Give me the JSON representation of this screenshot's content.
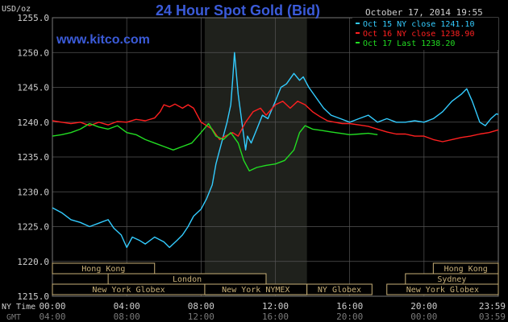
{
  "title": "24 Hour Spot Gold (Bid)",
  "website": "www.kitco.com",
  "timestamp": "October 17, 2014 19:55",
  "units": "USD/oz",
  "colors": {
    "background": "#000000",
    "grid": "#555555",
    "title": "#3b5bd9",
    "website": "#3b5bd9",
    "axis_text": "#cfcfcf",
    "gmt_text": "#7a7a7a",
    "highlight_band": "#1f211c",
    "session_box": "#c8b078",
    "session_text": "#c8b078"
  },
  "legend": [
    {
      "label": "Oct 15 NY close 1241.10",
      "color": "#33ccff"
    },
    {
      "label": "Oct 16 NY close 1238.90",
      "color": "#ff2020"
    },
    {
      "label": "Oct 17 Last 1238.20",
      "color": "#22dd22"
    }
  ],
  "axis_footer": {
    "ny_time": "NY Time",
    "gmt": "GMT"
  },
  "sessions": [
    {
      "label": "Hong Kong",
      "start": 0,
      "end": 5.5,
      "row": 0
    },
    {
      "label": "Hong Kong",
      "start": 20.5,
      "end": 24,
      "row": 0
    },
    {
      "label": "London",
      "start": 3,
      "end": 11.5,
      "row": 1
    },
    {
      "label": "Sydney",
      "start": 19,
      "end": 24,
      "row": 1
    },
    {
      "label": "New York Globex",
      "start": 0,
      "end": 8.2,
      "row": 2
    },
    {
      "label": "New York NYMEX",
      "start": 8.2,
      "end": 13.7,
      "row": 2
    },
    {
      "label": "NY Globex",
      "start": 13.7,
      "end": 17.2,
      "row": 2
    },
    {
      "label": "New York Globex",
      "start": 18,
      "end": 24,
      "row": 2
    }
  ],
  "chart_data": {
    "type": "line",
    "title": "24 Hour Spot Gold (Bid)",
    "ylabel": "USD/oz",
    "xlim": [
      0,
      24
    ],
    "ylim": [
      1215,
      1255
    ],
    "y_ticks": [
      "1255.0",
      "1250.0",
      "1245.0",
      "1240.0",
      "1235.0",
      "1230.0",
      "1225.0",
      "1220.0",
      "1215.0"
    ],
    "y_tick_values": [
      1255,
      1250,
      1245,
      1240,
      1235,
      1230,
      1225,
      1220,
      1215
    ],
    "x_ticks_ny": [
      "00:00",
      "04:00",
      "08:00",
      "12:00",
      "16:00",
      "20:00",
      "23:59"
    ],
    "x_ticks_gmt": [
      "04:00",
      "08:00",
      "12:00",
      "16:00",
      "20:00",
      "00:00",
      "03:59"
    ],
    "x_tick_values": [
      0,
      4,
      8,
      12,
      16,
      20,
      24
    ],
    "highlight_range": [
      8.2,
      13.7
    ],
    "grid": true,
    "legend_position": "top-right",
    "series": [
      {
        "name": "Oct 15 NY close 1241.10",
        "color": "#33ccff",
        "points": [
          [
            0,
            1227.7
          ],
          [
            0.5,
            1227.0
          ],
          [
            1,
            1226.0
          ],
          [
            1.5,
            1225.6
          ],
          [
            2,
            1225.0
          ],
          [
            2.5,
            1225.5
          ],
          [
            3,
            1226.0
          ],
          [
            3.3,
            1224.8
          ],
          [
            3.7,
            1223.8
          ],
          [
            4,
            1222.0
          ],
          [
            4.3,
            1223.5
          ],
          [
            4.7,
            1223.0
          ],
          [
            5,
            1222.5
          ],
          [
            5.5,
            1223.5
          ],
          [
            6,
            1222.8
          ],
          [
            6.3,
            1222.0
          ],
          [
            6.7,
            1223.0
          ],
          [
            7,
            1223.8
          ],
          [
            7.3,
            1225.0
          ],
          [
            7.6,
            1226.5
          ],
          [
            8,
            1227.5
          ],
          [
            8.3,
            1229.0
          ],
          [
            8.6,
            1231.0
          ],
          [
            8.8,
            1234.0
          ],
          [
            9.0,
            1236.0
          ],
          [
            9.2,
            1238.0
          ],
          [
            9.4,
            1240.0
          ],
          [
            9.6,
            1242.5
          ],
          [
            9.7,
            1246.0
          ],
          [
            9.8,
            1250.0
          ],
          [
            9.9,
            1247.0
          ],
          [
            10.0,
            1244.0
          ],
          [
            10.2,
            1240.0
          ],
          [
            10.4,
            1236.0
          ],
          [
            10.5,
            1238.0
          ],
          [
            10.7,
            1237.0
          ],
          [
            11.0,
            1239.0
          ],
          [
            11.3,
            1241.0
          ],
          [
            11.6,
            1240.5
          ],
          [
            12.0,
            1243.0
          ],
          [
            12.3,
            1245.0
          ],
          [
            12.6,
            1245.5
          ],
          [
            13.0,
            1247.0
          ],
          [
            13.3,
            1246.0
          ],
          [
            13.5,
            1246.5
          ],
          [
            13.8,
            1245.0
          ],
          [
            14.2,
            1243.5
          ],
          [
            14.6,
            1242.0
          ],
          [
            15.0,
            1241.0
          ],
          [
            15.5,
            1240.5
          ],
          [
            16.0,
            1240.0
          ],
          [
            16.5,
            1240.5
          ],
          [
            17.0,
            1241.0
          ],
          [
            17.5,
            1240.0
          ],
          [
            18.0,
            1240.5
          ],
          [
            18.5,
            1240.0
          ],
          [
            19.0,
            1240.0
          ],
          [
            19.5,
            1240.2
          ],
          [
            20.0,
            1240.0
          ],
          [
            20.5,
            1240.5
          ],
          [
            21.0,
            1241.5
          ],
          [
            21.5,
            1243.0
          ],
          [
            22.0,
            1244.0
          ],
          [
            22.3,
            1244.8
          ],
          [
            22.6,
            1243.0
          ],
          [
            23.0,
            1240.0
          ],
          [
            23.3,
            1239.5
          ],
          [
            23.6,
            1240.5
          ],
          [
            23.9,
            1241.2
          ],
          [
            24.0,
            1241.1
          ]
        ]
      },
      {
        "name": "Oct 16 NY close 1238.90",
        "color": "#ff2020",
        "points": [
          [
            0,
            1240.2
          ],
          [
            0.5,
            1240.0
          ],
          [
            1,
            1239.8
          ],
          [
            1.5,
            1240.0
          ],
          [
            2,
            1239.5
          ],
          [
            2.5,
            1240.0
          ],
          [
            3,
            1239.6
          ],
          [
            3.5,
            1240.1
          ],
          [
            4,
            1240.0
          ],
          [
            4.5,
            1240.4
          ],
          [
            5,
            1240.2
          ],
          [
            5.5,
            1240.6
          ],
          [
            5.8,
            1241.5
          ],
          [
            6.0,
            1242.5
          ],
          [
            6.3,
            1242.2
          ],
          [
            6.6,
            1242.6
          ],
          [
            7,
            1242.0
          ],
          [
            7.3,
            1242.5
          ],
          [
            7.6,
            1242.0
          ],
          [
            8,
            1240.0
          ],
          [
            8.3,
            1239.5
          ],
          [
            8.6,
            1239.0
          ],
          [
            9.0,
            1237.5
          ],
          [
            9.3,
            1238.0
          ],
          [
            9.7,
            1238.5
          ],
          [
            10.0,
            1238.0
          ],
          [
            10.4,
            1240.0
          ],
          [
            10.8,
            1241.5
          ],
          [
            11.2,
            1242.0
          ],
          [
            11.5,
            1241.0
          ],
          [
            12,
            1242.5
          ],
          [
            12.4,
            1243.0
          ],
          [
            12.8,
            1242.0
          ],
          [
            13.2,
            1243.0
          ],
          [
            13.6,
            1242.5
          ],
          [
            14.0,
            1241.5
          ],
          [
            14.4,
            1240.8
          ],
          [
            14.8,
            1240.2
          ],
          [
            15.2,
            1240.0
          ],
          [
            15.6,
            1239.8
          ],
          [
            16.0,
            1239.8
          ],
          [
            16.5,
            1239.6
          ],
          [
            17.0,
            1239.4
          ],
          [
            17.5,
            1239.0
          ],
          [
            18.0,
            1238.6
          ],
          [
            18.5,
            1238.3
          ],
          [
            19.0,
            1238.3
          ],
          [
            19.5,
            1238.0
          ],
          [
            20.0,
            1238.0
          ],
          [
            20.5,
            1237.5
          ],
          [
            21.0,
            1237.2
          ],
          [
            21.5,
            1237.5
          ],
          [
            22.0,
            1237.8
          ],
          [
            22.5,
            1238.0
          ],
          [
            23.0,
            1238.3
          ],
          [
            23.5,
            1238.5
          ],
          [
            24.0,
            1238.9
          ]
        ]
      },
      {
        "name": "Oct 17 Last 1238.20",
        "color": "#22dd22",
        "points": [
          [
            0,
            1238.0
          ],
          [
            0.5,
            1238.2
          ],
          [
            1,
            1238.5
          ],
          [
            1.5,
            1239.0
          ],
          [
            2,
            1239.8
          ],
          [
            2.5,
            1239.3
          ],
          [
            3,
            1239.0
          ],
          [
            3.5,
            1239.5
          ],
          [
            4,
            1238.5
          ],
          [
            4.5,
            1238.2
          ],
          [
            5,
            1237.5
          ],
          [
            5.5,
            1237.0
          ],
          [
            6,
            1236.5
          ],
          [
            6.5,
            1236.0
          ],
          [
            7,
            1236.5
          ],
          [
            7.5,
            1237.0
          ],
          [
            8,
            1238.5
          ],
          [
            8.4,
            1239.8
          ],
          [
            8.8,
            1238.0
          ],
          [
            9.2,
            1237.5
          ],
          [
            9.6,
            1238.5
          ],
          [
            10.0,
            1237.0
          ],
          [
            10.3,
            1234.5
          ],
          [
            10.6,
            1233.0
          ],
          [
            11.0,
            1233.5
          ],
          [
            11.5,
            1233.8
          ],
          [
            12.0,
            1234.0
          ],
          [
            12.5,
            1234.5
          ],
          [
            13.0,
            1236.0
          ],
          [
            13.3,
            1238.5
          ],
          [
            13.6,
            1239.5
          ],
          [
            14.0,
            1239.0
          ],
          [
            14.5,
            1238.8
          ],
          [
            15.0,
            1238.6
          ],
          [
            15.5,
            1238.4
          ],
          [
            16.0,
            1238.2
          ],
          [
            16.5,
            1238.3
          ],
          [
            17.0,
            1238.4
          ],
          [
            17.5,
            1238.2
          ]
        ]
      }
    ]
  }
}
